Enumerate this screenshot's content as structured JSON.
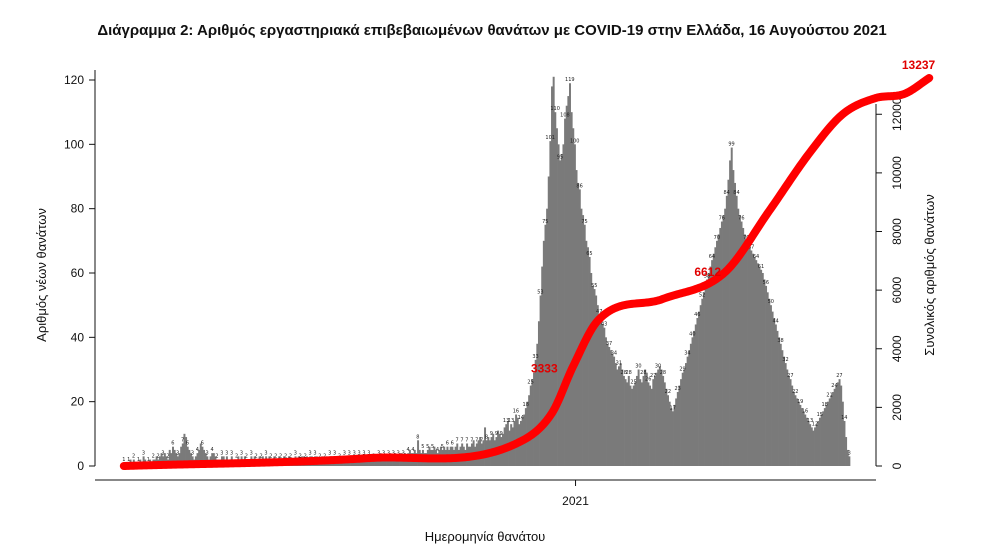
{
  "title": "Διάγραμμα 2: Αριθμός εργαστηριακά επιβεβαιωμένων θανάτων με COVID-19 στην Ελλάδα, 16 Αυγούστου 2021",
  "chart_data": {
    "type": "bar",
    "xlabel": "Ημερομηνία θανάτου",
    "ylabel": "Αριθμός νέων θανάτων",
    "y2label": "Συνολικός αριθμός θανάτων",
    "ylim": [
      0,
      125
    ],
    "y2lim": [
      0,
      13237
    ],
    "y_ticks": [
      "0",
      "20",
      "40",
      "60",
      "80",
      "100",
      "120"
    ],
    "y2_ticks": [
      "0",
      "2000",
      "4000",
      "6000",
      "8000",
      "10000",
      "12000"
    ],
    "x_tick_labels": [
      {
        "label": "2021",
        "index": 277
      }
    ],
    "bar_color": "#7a7a7a",
    "cumulative_color": "#ff0000",
    "series": [
      {
        "name": "daily",
        "values": [
          1,
          1,
          1,
          1,
          2,
          1,
          2,
          1,
          1,
          1,
          2,
          1,
          3,
          2,
          1,
          1,
          2,
          1,
          2,
          2,
          3,
          2,
          3,
          4,
          3,
          4,
          3,
          2,
          5,
          4,
          6,
          5,
          4,
          3,
          4,
          6,
          7,
          10,
          9,
          6,
          5,
          4,
          3,
          2,
          3,
          4,
          5,
          7,
          6,
          5,
          4,
          3,
          2,
          3,
          4,
          4,
          3,
          2,
          2,
          2,
          3,
          3,
          2,
          3,
          2,
          2,
          3,
          2,
          2,
          2,
          3,
          2,
          3,
          2,
          3,
          2,
          2,
          2,
          3,
          2,
          3,
          2,
          2,
          3,
          2,
          3,
          2,
          3,
          2,
          3,
          2,
          2,
          3,
          2,
          2,
          3,
          2,
          2,
          3,
          2,
          2,
          3,
          2,
          2,
          2,
          3,
          2,
          3,
          2,
          3,
          3,
          2,
          3,
          2,
          3,
          3,
          2,
          3,
          3,
          2,
          2,
          3,
          3,
          2,
          3,
          2,
          3,
          3,
          2,
          3,
          2,
          3,
          2,
          3,
          2,
          3,
          3,
          2,
          3,
          2,
          3,
          3,
          3,
          2,
          3,
          3,
          2,
          3,
          3,
          2,
          3,
          3,
          3,
          2,
          3,
          3,
          3,
          4,
          3,
          3,
          2,
          3,
          3,
          4,
          3,
          3,
          4,
          3,
          3,
          4,
          4,
          3,
          4,
          3,
          4,
          5,
          4,
          4,
          5,
          4,
          8,
          5,
          4,
          5,
          4,
          4,
          5,
          6,
          5,
          5,
          6,
          5,
          4,
          5,
          6,
          5,
          6,
          5,
          6,
          5,
          6,
          6,
          5,
          6,
          7,
          5,
          6,
          7,
          6,
          5,
          7,
          6,
          6,
          7,
          8,
          6,
          7,
          8,
          9,
          7,
          8,
          12,
          8,
          9,
          8,
          9,
          10,
          8,
          9,
          11,
          10,
          9,
          10,
          12,
          13,
          14,
          11,
          13,
          12,
          14,
          16,
          15,
          13,
          14,
          15,
          16,
          18,
          20,
          22,
          25,
          27,
          29,
          33,
          38,
          45,
          53,
          62,
          70,
          75,
          80,
          90,
          101,
          118,
          121,
          110,
          105,
          100,
          95,
          97,
          100,
          108,
          112,
          115,
          119,
          110,
          105,
          100,
          92,
          88,
          86,
          80,
          78,
          75,
          70,
          68,
          65,
          60,
          56,
          55,
          53,
          50,
          47,
          45,
          44,
          43,
          40,
          38,
          37,
          36,
          35,
          34,
          32,
          30,
          31,
          32,
          30,
          28,
          27,
          26,
          28,
          25,
          24,
          25,
          26,
          28,
          30,
          27,
          26,
          28,
          30,
          29,
          26,
          25,
          24,
          27,
          28,
          29,
          30,
          31,
          30,
          28,
          26,
          24,
          22,
          20,
          18,
          17,
          19,
          21,
          23,
          25,
          27,
          29,
          30,
          32,
          34,
          36,
          38,
          40,
          42,
          44,
          46,
          48,
          50,
          52,
          54,
          56,
          58,
          60,
          62,
          64,
          66,
          68,
          70,
          72,
          74,
          76,
          78,
          80,
          84,
          89,
          95,
          99,
          92,
          88,
          84,
          80,
          78,
          76,
          74,
          72,
          70,
          69,
          68,
          67,
          66,
          65,
          64,
          63,
          62,
          61,
          60,
          58,
          56,
          54,
          52,
          50,
          48,
          46,
          44,
          42,
          40,
          38,
          36,
          34,
          32,
          30,
          28,
          27,
          25,
          23,
          22,
          21,
          20,
          19,
          18,
          17,
          16,
          15,
          14,
          13,
          12,
          11,
          12,
          13,
          14,
          15,
          16,
          17,
          18,
          19,
          20,
          21,
          22,
          23,
          24,
          25,
          26,
          27,
          25,
          20,
          14,
          9,
          5,
          3
        ]
      },
      {
        "name": "cumulative",
        "anchors": [
          [
            0,
            0
          ],
          [
            150,
            270
          ],
          [
            240,
            760
          ],
          [
            262,
            1800
          ],
          [
            275,
            3400
          ],
          [
            290,
            4950
          ],
          [
            330,
            5700
          ],
          [
            368,
            6612
          ],
          [
            395,
            8700
          ],
          [
            420,
            10700
          ],
          [
            440,
            12000
          ],
          [
            460,
            12550
          ],
          [
            478,
            12700
          ],
          [
            493,
            13237
          ]
        ]
      }
    ],
    "annotations": [
      {
        "text": "3333",
        "index": 268,
        "value_cum": 3333
      },
      {
        "text": "6612",
        "index": 368,
        "value_cum": 6612
      },
      {
        "text": "13237",
        "index": 493,
        "value_cum": 13237
      }
    ]
  }
}
